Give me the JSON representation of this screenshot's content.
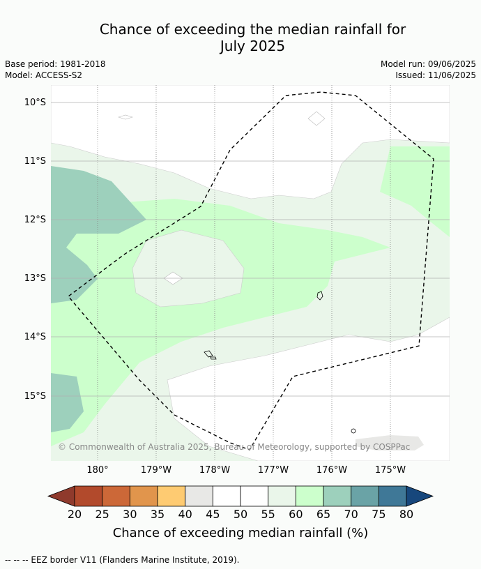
{
  "header": {
    "title_line1": "Chance of exceeding the median rainfall for",
    "title_line2": "July 2025",
    "base_period": "Base period: 1981-2018",
    "model": "Model: ACCESS-S2",
    "model_run": "Model run: 09/06/2025",
    "issued": "Issued: 11/06/2025"
  },
  "map": {
    "attribution": "© Commonwealth of Australia 2025, Bureau of Meteorology, supported by COSPPac",
    "lat_labels": [
      "10°S",
      "11°S",
      "12°S",
      "13°S",
      "14°S",
      "15°S"
    ],
    "lon_labels": [
      "180°",
      "179°W",
      "178°W",
      "177°W",
      "176°W",
      "175°W"
    ]
  },
  "colorbar": {
    "label": "Chance of exceeding median rainfall (%)",
    "ticks": [
      "20",
      "25",
      "30",
      "35",
      "40",
      "45",
      "50",
      "55",
      "60",
      "65",
      "70",
      "75",
      "80"
    ],
    "colors": [
      "#8f3a2c",
      "#b24a2c",
      "#cc6838",
      "#e1954c",
      "#fecb72",
      "#e8e8e6",
      "#ffffff",
      "#ffffff",
      "#eaf6ea",
      "#ccffcc",
      "#9dd0bc",
      "#6aa3a6",
      "#3f7897",
      "#17477c"
    ]
  },
  "footer": {
    "eez_note": "--  --  -- EEZ border V11 (Flanders Marine Institute, 2019)."
  },
  "chart_data": {
    "type": "heatmap",
    "title": "Chance of exceeding the median rainfall for July 2025",
    "value_label": "Chance of exceeding median rainfall (%)",
    "x_ticks": [
      "180°",
      "179°W",
      "178°W",
      "177°W",
      "176°W",
      "175°W"
    ],
    "y_ticks": [
      "10°S",
      "11°S",
      "12°S",
      "13°S",
      "14°S",
      "15°S"
    ],
    "scale_bins": [
      20,
      25,
      30,
      35,
      40,
      45,
      50,
      55,
      60,
      65,
      70,
      75,
      80
    ]
  }
}
